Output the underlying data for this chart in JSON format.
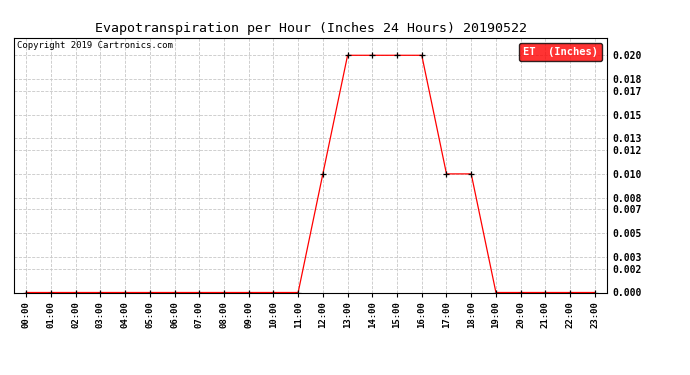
{
  "title": "Evapotranspiration per Hour (Inches 24 Hours) 20190522",
  "copyright": "Copyright 2019 Cartronics.com",
  "legend_label": "ET  (Inches)",
  "legend_bg": "#ff0000",
  "legend_text_color": "#ffffff",
  "line_color": "#ff0000",
  "marker_color": "#000000",
  "background_color": "#ffffff",
  "grid_color": "#c8c8c8",
  "hours": [
    0,
    1,
    2,
    3,
    4,
    5,
    6,
    7,
    8,
    9,
    10,
    11,
    12,
    13,
    14,
    15,
    16,
    17,
    18,
    19,
    20,
    21,
    22,
    23
  ],
  "values": [
    0.0,
    0.0,
    0.0,
    0.0,
    0.0,
    0.0,
    0.0,
    0.0,
    0.0,
    0.0,
    0.0,
    0.0,
    0.01,
    0.02,
    0.02,
    0.02,
    0.02,
    0.01,
    0.01,
    0.0,
    0.0,
    0.0,
    0.0,
    0.0
  ],
  "ylim": [
    0.0,
    0.0215
  ],
  "yticks": [
    0.0,
    0.002,
    0.003,
    0.005,
    0.007,
    0.008,
    0.01,
    0.012,
    0.013,
    0.015,
    0.017,
    0.018,
    0.02
  ],
  "xlim": [
    -0.5,
    23.5
  ],
  "figwidth": 6.9,
  "figheight": 3.75,
  "dpi": 100
}
